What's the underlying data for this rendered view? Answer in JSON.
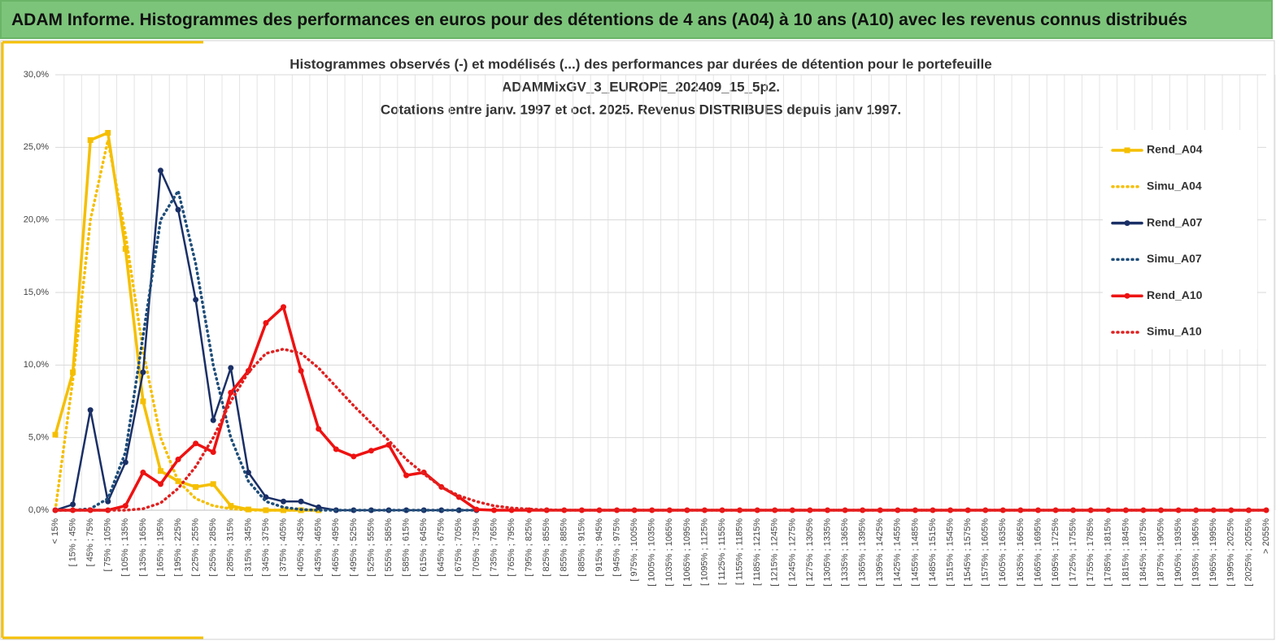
{
  "banner": "ADAM Informe. Histogrammes des performances en euros pour des détentions de 4 ans (A04) à 10 ans (A10) avec les revenus connus distribués",
  "chart_data": {
    "type": "line",
    "title": [
      "Histogrammes observés (-) et modélisés (...) des performances par durées de détention pour le portefeuille",
      "ADAMMixGV_3_EUROPE_202409_15_5p2.",
      "Cotations entre janv. 1997 et oct. 2025. Revenus DISTRIBUES depuis janv 1997."
    ],
    "categories": [
      "< 15%",
      "[ 15% ; 45%",
      "[ 45% ; 75%",
      "[ 75% ; 105%",
      "[ 105% ; 135%",
      "[ 135% ; 165%",
      "[ 165% ; 195%",
      "[ 195% ; 225%",
      "[ 225% ; 255%",
      "[ 255% ; 285%",
      "[ 285% ; 315%",
      "[ 315% ; 345%",
      "[ 345% ; 375%",
      "[ 375% ; 405%",
      "[ 405% ; 435%",
      "[ 435% ; 465%",
      "[ 465% ; 495%",
      "[ 495% ; 525%",
      "[ 525% ; 555%",
      "[ 555% ; 585%",
      "[ 585% ; 615%",
      "[ 615% ; 645%",
      "[ 645% ; 675%",
      "[ 675% ; 705%",
      "[ 705% ; 735%",
      "[ 735% ; 765%",
      "[ 765% ; 795%",
      "[ 795% ; 825%",
      "[ 825% ; 855%",
      "[ 855% ; 885%",
      "[ 885% ; 915%",
      "[ 915% ; 945%",
      "[ 945% ; 975%",
      "[ 975% ; 1005%",
      "[ 1005% ; 1035%",
      "[ 1035% ; 1065%",
      "[ 1065% ; 1095%",
      "[ 1095% ; 1125%",
      "[ 1125% ; 1155%",
      "[ 1155% ; 1185%",
      "[ 1185% ; 1215%",
      "[ 1215% ; 1245%",
      "[ 1245% ; 1275%",
      "[ 1275% ; 1305%",
      "[ 1305% ; 1335%",
      "[ 1335% ; 1365%",
      "[ 1365% ; 1395%",
      "[ 1395% ; 1425%",
      "[ 1425% ; 1455%",
      "[ 1455% ; 1485%",
      "[ 1485% ; 1515%",
      "[ 1515% ; 1545%",
      "[ 1545% ; 1575%",
      "[ 1575% ; 1605%",
      "[ 1605% ; 1635%",
      "[ 1635% ; 1665%",
      "[ 1665% ; 1695%",
      "[ 1695% ; 1725%",
      "[ 1725% ; 1755%",
      "[ 1755% ; 1785%",
      "[ 1785% ; 1815%",
      "[ 1815% ; 1845%",
      "[ 1845% ; 1875%",
      "[ 1875% ; 1905%",
      "[ 1905% ; 1935%",
      "[ 1935% ; 1965%",
      "[ 1965% ; 1995%",
      "[ 1995% ; 2025%",
      "[ 2025% ; 2055%",
      "> 2055%"
    ],
    "series": [
      {
        "name": "Rend_A04",
        "color": "#f5bf00",
        "style": "solid",
        "marker": "square",
        "values": [
          5.2,
          9.5,
          25.5,
          26.0,
          18.0,
          7.5,
          2.7,
          2.0,
          1.6,
          1.8,
          0.3,
          0.05,
          0,
          0,
          0,
          0,
          null,
          null,
          null,
          null,
          null,
          null,
          null,
          null,
          null,
          null,
          null,
          null,
          null,
          null,
          null,
          null,
          null,
          null,
          null,
          null,
          null,
          null,
          null,
          null,
          null,
          null,
          null,
          null,
          null,
          null,
          null,
          null,
          null,
          null,
          null,
          null,
          null,
          null,
          null,
          null,
          null,
          null,
          null,
          null,
          null,
          null,
          null,
          null,
          null,
          null,
          null,
          null,
          null,
          null
        ]
      },
      {
        "name": "Simu_A04",
        "color": "#f5bf00",
        "style": "dotted",
        "marker": null,
        "values": [
          0,
          9,
          20,
          25.5,
          19,
          11,
          5,
          2,
          0.8,
          0.3,
          0.1,
          0,
          0,
          0,
          0,
          0,
          null,
          null,
          null,
          null,
          null,
          null,
          null,
          null,
          null,
          null,
          null,
          null,
          null,
          null,
          null,
          null,
          null,
          null,
          null,
          null,
          null,
          null,
          null,
          null,
          null,
          null,
          null,
          null,
          null,
          null,
          null,
          null,
          null,
          null,
          null,
          null,
          null,
          null,
          null,
          null,
          null,
          null,
          null,
          null,
          null,
          null,
          null,
          null,
          null,
          null,
          null,
          null,
          null,
          null
        ]
      },
      {
        "name": "Rend_A07",
        "color": "#1a2f66",
        "style": "solid",
        "marker": "circle",
        "values": [
          0,
          0.4,
          6.9,
          0.6,
          3.3,
          9.5,
          23.4,
          20.7,
          14.5,
          6.2,
          9.8,
          2.6,
          0.9,
          0.6,
          0.6,
          0.2,
          0,
          0,
          0,
          0,
          0,
          0,
          0,
          0,
          0,
          null,
          null,
          null,
          null,
          null,
          null,
          null,
          null,
          null,
          null,
          null,
          null,
          null,
          null,
          null,
          null,
          null,
          null,
          null,
          null,
          null,
          null,
          null,
          null,
          null,
          null,
          null,
          null,
          null,
          null,
          null,
          null,
          null,
          null,
          null,
          null,
          null,
          null,
          null,
          null,
          null,
          null,
          null,
          null,
          null
        ]
      },
      {
        "name": "Simu_A07",
        "color": "#1f4e79",
        "style": "dotted",
        "marker": null,
        "values": [
          0,
          0,
          0.1,
          0.8,
          4,
          12,
          20,
          22,
          17,
          10,
          5,
          2,
          0.6,
          0.2,
          0.05,
          0,
          0,
          0,
          0,
          0,
          0,
          0,
          0,
          0,
          0,
          null,
          null,
          null,
          null,
          null,
          null,
          null,
          null,
          null,
          null,
          null,
          null,
          null,
          null,
          null,
          null,
          null,
          null,
          null,
          null,
          null,
          null,
          null,
          null,
          null,
          null,
          null,
          null,
          null,
          null,
          null,
          null,
          null,
          null,
          null,
          null,
          null,
          null,
          null,
          null,
          null,
          null,
          null,
          null,
          null
        ]
      },
      {
        "name": "Rend_A10",
        "color": "#ee1111",
        "style": "solid",
        "marker": "circle",
        "values": [
          0,
          0,
          0,
          0,
          0.3,
          2.6,
          1.8,
          3.5,
          4.6,
          4.0,
          8.1,
          9.6,
          12.9,
          14.0,
          9.6,
          5.6,
          4.2,
          3.7,
          4.1,
          4.5,
          2.4,
          2.6,
          1.6,
          0.9,
          0.05,
          0,
          0,
          0,
          0,
          0,
          0,
          0,
          0,
          0,
          0,
          0,
          0,
          0,
          0,
          0,
          0,
          0,
          0,
          0,
          0,
          0,
          0,
          0,
          0,
          0,
          0,
          0,
          0,
          0,
          0,
          0,
          0,
          0,
          0,
          0,
          0,
          0,
          0,
          0,
          0,
          0,
          0,
          0,
          0,
          0
        ]
      },
      {
        "name": "Simu_A10",
        "color": "#e02020",
        "style": "dotted",
        "marker": null,
        "values": [
          0,
          0,
          0,
          0,
          0,
          0.1,
          0.5,
          1.5,
          3,
          5,
          7.5,
          9.5,
          10.8,
          11.1,
          10.8,
          9.8,
          8.5,
          7.2,
          6,
          4.8,
          3.5,
          2.5,
          1.6,
          1,
          0.6,
          0.3,
          0.15,
          0.08,
          0.03,
          0,
          0,
          0,
          0,
          0,
          0,
          0,
          0,
          0,
          0,
          0,
          0,
          0,
          0,
          0,
          0,
          0,
          0,
          0,
          0,
          0,
          0,
          0,
          0,
          0,
          0,
          0,
          0,
          0,
          0,
          0,
          0,
          0,
          0,
          0,
          0,
          0,
          0,
          0,
          0,
          0
        ]
      }
    ],
    "ylim": [
      0,
      30
    ],
    "yticks": [
      {
        "value": 0,
        "label": "0,0%"
      },
      {
        "value": 5,
        "label": "5,0%"
      },
      {
        "value": 10,
        "label": "10,0%"
      },
      {
        "value": 15,
        "label": "15,0%"
      },
      {
        "value": 20,
        "label": "20,0%"
      },
      {
        "value": 25,
        "label": "25,0%"
      },
      {
        "value": 30,
        "label": "30,0%"
      }
    ],
    "grid": true,
    "legend_position": "right"
  }
}
